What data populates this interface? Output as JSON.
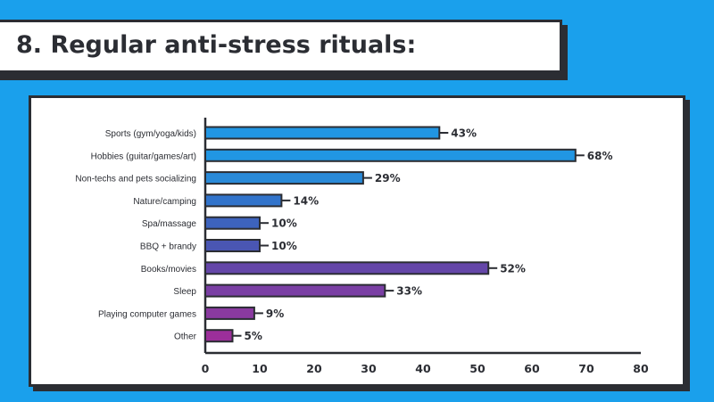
{
  "title": "8. Regular anti-stress rituals:",
  "chart_data": {
    "type": "bar",
    "orientation": "horizontal",
    "categories": [
      "Sports (gym/yoga/kids)",
      "Hobbies (guitar/games/art)",
      "Non-techs and pets socializing",
      "Nature/camping",
      "Spa/massage",
      "BBQ + brandy",
      "Books/movies",
      "Sleep",
      "Playing computer games",
      "Other"
    ],
    "values": [
      43,
      68,
      29,
      14,
      10,
      10,
      52,
      33,
      9,
      5
    ],
    "value_labels": [
      "43%",
      "68%",
      "29%",
      "14%",
      "10%",
      "10%",
      "52%",
      "33%",
      "9%",
      "5%"
    ],
    "bar_colors": [
      "#2196e3",
      "#2196e3",
      "#2a8ad8",
      "#3274cb",
      "#3d63be",
      "#4a56b3",
      "#6446a8",
      "#7a3fa4",
      "#8a3aa0",
      "#9c2f9a"
    ],
    "xlim": [
      0,
      80
    ],
    "x_ticks": [
      "0",
      "10",
      "20",
      "30",
      "40",
      "50",
      "60",
      "70",
      "80"
    ],
    "grid": false,
    "legend": "none"
  }
}
